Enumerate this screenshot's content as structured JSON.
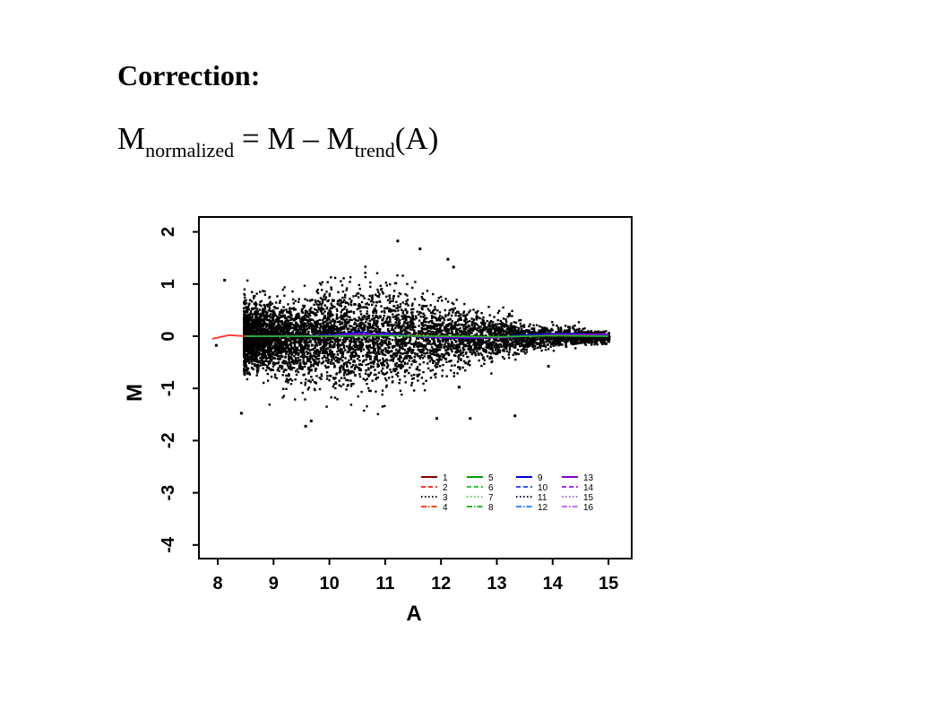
{
  "slide": {
    "heading": "Correction:",
    "formula": {
      "m1": "M",
      "sub1": "normalized",
      "middle": " = M – M",
      "sub2": "trend",
      "end": "(A)"
    }
  },
  "chart_data": {
    "type": "scatter",
    "xlabel": "A",
    "ylabel": "M",
    "xlim": [
      7.8,
      15.3
    ],
    "ylim": [
      -4.2,
      2.2
    ],
    "x_ticks": [
      8,
      9,
      10,
      11,
      12,
      13,
      14,
      15
    ],
    "y_ticks": [
      2,
      1,
      0,
      -1,
      -2,
      -3,
      -4
    ],
    "points_color": "#000000",
    "grid": false,
    "legend_placement": "bottom-right",
    "legend": [
      {
        "label": "1",
        "color": "#8b0000",
        "dash": "solid"
      },
      {
        "label": "2",
        "color": "#ff3030",
        "dash": "dashed"
      },
      {
        "label": "3",
        "color": "#000000",
        "dash": "dotted"
      },
      {
        "label": "4",
        "color": "#ff4500",
        "dash": "dashdot"
      },
      {
        "label": "5",
        "color": "#00a000",
        "dash": "solid"
      },
      {
        "label": "6",
        "color": "#33cc33",
        "dash": "dashed"
      },
      {
        "label": "7",
        "color": "#66cc66",
        "dash": "dotted"
      },
      {
        "label": "8",
        "color": "#22bb22",
        "dash": "dashdot"
      },
      {
        "label": "9",
        "color": "#0000cc",
        "dash": "solid"
      },
      {
        "label": "10",
        "color": "#3355ff",
        "dash": "dashed"
      },
      {
        "label": "11",
        "color": "#000033",
        "dash": "dotted"
      },
      {
        "label": "12",
        "color": "#3388ff",
        "dash": "dashdot"
      },
      {
        "label": "13",
        "color": "#7a00cc",
        "dash": "solid"
      },
      {
        "label": "14",
        "color": "#aa33dd",
        "dash": "dashed"
      },
      {
        "label": "15",
        "color": "#aa66ee",
        "dash": "dotted"
      },
      {
        "label": "16",
        "color": "#cc66ff",
        "dash": "dashdot"
      }
    ],
    "trend_lines": [
      {
        "name": "red",
        "color": "#ff3030",
        "x": [
          7.9,
          8.2,
          8.5,
          9.0,
          10.0,
          11.0,
          12.0,
          13.0,
          14.0,
          15.0
        ],
        "y": [
          -0.05,
          0.02,
          0.0,
          0.0,
          0.0,
          0.02,
          0.0,
          -0.02,
          0.02,
          0.02
        ]
      },
      {
        "name": "blue",
        "color": "#0000cc",
        "x": [
          8.5,
          9.0,
          9.5,
          10.0,
          10.4,
          10.6,
          10.8,
          11.0,
          11.5,
          12.0,
          12.5,
          13.0,
          13.5,
          14.0,
          14.5,
          15.0
        ],
        "y": [
          0.0,
          0.0,
          0.0,
          0.02,
          0.06,
          0.08,
          0.04,
          0.06,
          0.0,
          -0.03,
          -0.04,
          -0.02,
          0.02,
          0.05,
          0.05,
          0.02
        ]
      },
      {
        "name": "purple",
        "color": "#7a00cc",
        "x": [
          8.5,
          10.0,
          10.5,
          11.0,
          12.0,
          13.0,
          14.0,
          15.0
        ],
        "y": [
          0.0,
          0.01,
          0.04,
          0.03,
          -0.02,
          -0.03,
          0.03,
          0.04
        ]
      },
      {
        "name": "green",
        "color": "#22bb22",
        "x": [
          8.5,
          10.0,
          11.0,
          12.0,
          13.0,
          14.0,
          15.0
        ],
        "y": [
          0.0,
          0.0,
          0.01,
          0.0,
          -0.01,
          0.01,
          0.0
        ]
      }
    ],
    "scatter_outliers": [
      {
        "x": 8.1,
        "y": 1.1
      },
      {
        "x": 8.4,
        "y": -1.45
      },
      {
        "x": 9.55,
        "y": -1.7
      },
      {
        "x": 9.65,
        "y": -1.6
      },
      {
        "x": 11.2,
        "y": 1.85
      },
      {
        "x": 11.6,
        "y": 1.7
      },
      {
        "x": 12.1,
        "y": 1.5
      },
      {
        "x": 12.2,
        "y": 1.35
      },
      {
        "x": 11.9,
        "y": -1.55
      },
      {
        "x": 12.5,
        "y": -1.55
      },
      {
        "x": 13.3,
        "y": -1.5
      },
      {
        "x": 12.3,
        "y": -0.95
      },
      {
        "x": 13.9,
        "y": -0.55
      },
      {
        "x": 13.2,
        "y": 0.45
      },
      {
        "x": 7.95,
        "y": -0.15
      }
    ],
    "point_cloud": {
      "n_points": 6500,
      "a_range": [
        8.45,
        15.0
      ],
      "spread_profile": [
        {
          "a": 8.5,
          "sd": 0.3
        },
        {
          "a": 9.5,
          "sd": 0.38
        },
        {
          "a": 10.5,
          "sd": 0.45
        },
        {
          "a": 11.0,
          "sd": 0.45
        },
        {
          "a": 12.0,
          "sd": 0.3
        },
        {
          "a": 13.0,
          "sd": 0.18
        },
        {
          "a": 14.0,
          "sd": 0.1
        },
        {
          "a": 15.0,
          "sd": 0.05
        }
      ]
    }
  }
}
